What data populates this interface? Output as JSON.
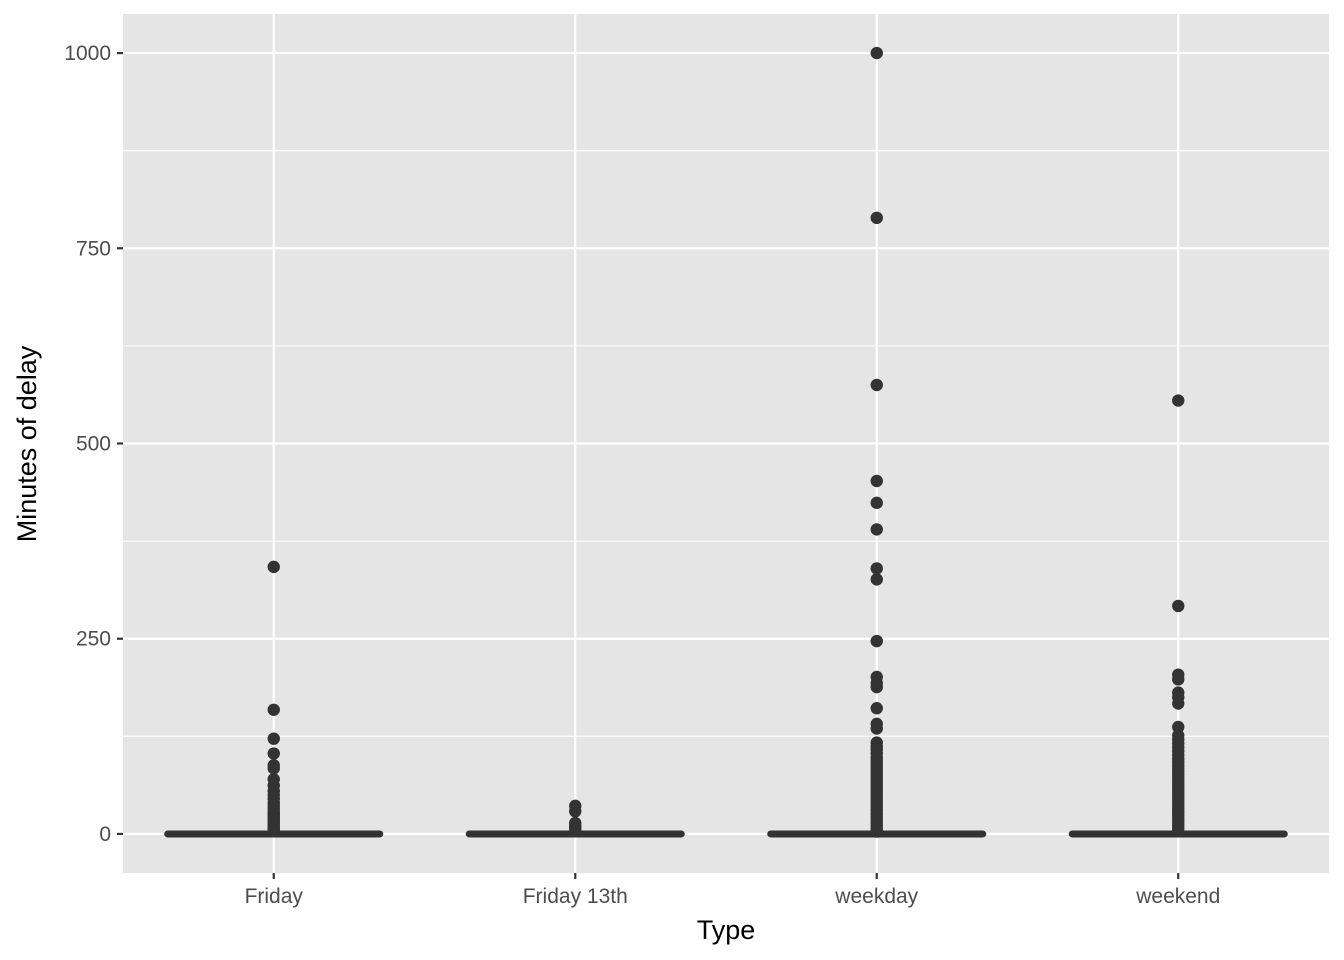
{
  "chart_data": {
    "type": "box",
    "title": "",
    "xlabel": "Type",
    "ylabel": "Minutes of delay",
    "categories": [
      "Friday",
      "Friday 13th",
      "weekday",
      "weekend"
    ],
    "ylim": [
      -50,
      1050
    ],
    "yticks": [
      0,
      250,
      500,
      750,
      1000
    ],
    "ytick_labels": [
      "0",
      "250",
      "500",
      "750",
      "1000"
    ],
    "grid": true,
    "legend": "none",
    "boxes": [
      {
        "category": "Friday",
        "q1": 0,
        "median": 0,
        "q3": 0,
        "whisker_low": 0,
        "whisker_high": 0,
        "outliers": [
          342,
          159,
          122,
          103,
          88,
          84,
          70,
          62,
          55,
          50,
          45,
          40,
          36,
          32,
          28,
          25,
          22,
          19,
          16,
          13,
          10,
          8,
          6,
          4
        ]
      },
      {
        "category": "Friday 13th",
        "q1": 0,
        "median": 0,
        "q3": 0,
        "whisker_low": 0,
        "whisker_high": 0,
        "outliers": [
          36,
          29,
          14,
          10,
          7,
          4
        ]
      },
      {
        "category": "weekday",
        "q1": 0,
        "median": 0,
        "q3": 0,
        "whisker_low": 0,
        "whisker_high": 0,
        "outliers": [
          1000,
          789,
          575,
          452,
          424,
          390,
          340,
          326,
          247,
          201,
          193,
          188,
          161,
          141,
          135,
          117,
          112,
          108,
          103,
          98,
          94,
          90,
          86,
          82,
          78,
          74,
          70,
          66,
          62,
          58,
          54,
          50,
          46,
          42,
          38,
          34,
          30,
          26,
          22,
          18,
          14,
          10,
          6,
          3
        ]
      },
      {
        "category": "weekend",
        "q1": 0,
        "median": 0,
        "q3": 0,
        "whisker_low": 0,
        "whisker_high": 0,
        "outliers": [
          555,
          292,
          204,
          198,
          181,
          175,
          167,
          137,
          126,
          121,
          116,
          111,
          106,
          101,
          96,
          92,
          88,
          84,
          80,
          76,
          72,
          68,
          64,
          60,
          56,
          52,
          48,
          44,
          40,
          36,
          32,
          28,
          24,
          20,
          16,
          12,
          8,
          4
        ]
      }
    ],
    "colors": {
      "panel_background": "#e5e5e5",
      "grid": "#ffffff",
      "box": "#333333",
      "points": "#333333"
    }
  }
}
